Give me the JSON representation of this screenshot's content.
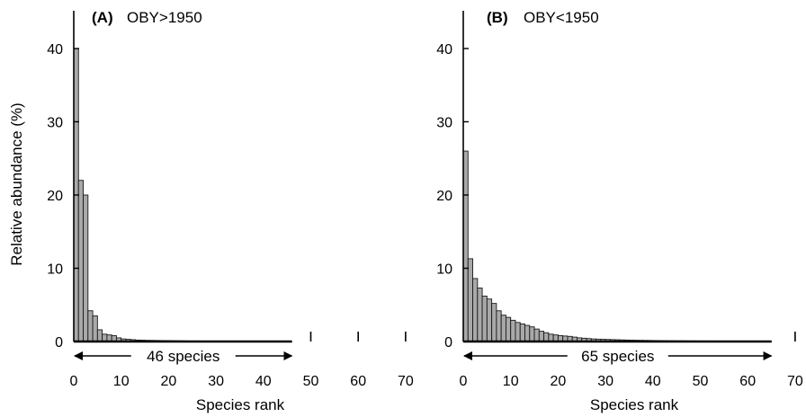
{
  "chart_data": [
    {
      "type": "bar",
      "panel_label": "(A)",
      "title": "OBY>1950",
      "xlabel": "Species rank",
      "ylabel": "Relative abundance (%)",
      "xlim": [
        0,
        70
      ],
      "ylim": [
        0,
        45
      ],
      "xticks": [
        0,
        10,
        20,
        30,
        40,
        50,
        60,
        70
      ],
      "yticks": [
        0,
        10,
        20,
        30,
        40
      ],
      "grid": false,
      "species_count": 46,
      "span_label": "46 species",
      "x": [
        1,
        2,
        3,
        4,
        5,
        6,
        7,
        8,
        9,
        10,
        11,
        12,
        13,
        14,
        15,
        16,
        17,
        18,
        19,
        20,
        21,
        22,
        23,
        24,
        25,
        26,
        27,
        28,
        29,
        30,
        31,
        32,
        33,
        34,
        35,
        36,
        37,
        38,
        39,
        40,
        41,
        42,
        43,
        44,
        45,
        46
      ],
      "values": [
        40,
        22,
        20,
        4.2,
        3.5,
        1.6,
        1.0,
        0.9,
        0.8,
        0.5,
        0.35,
        0.3,
        0.25,
        0.2,
        0.18,
        0.16,
        0.15,
        0.14,
        0.13,
        0.12,
        0.11,
        0.1,
        0.09,
        0.08,
        0.07,
        0.07,
        0.06,
        0.06,
        0.05,
        0.05,
        0.05,
        0.04,
        0.04,
        0.04,
        0.04,
        0.03,
        0.03,
        0.03,
        0.03,
        0.03,
        0.03,
        0.02,
        0.02,
        0.02,
        0.02,
        0.02
      ]
    },
    {
      "type": "bar",
      "panel_label": "(B)",
      "title": "OBY<1950",
      "xlabel": "Species rank",
      "ylabel": "",
      "xlim": [
        0,
        70
      ],
      "ylim": [
        0,
        45
      ],
      "xticks": [
        0,
        10,
        20,
        30,
        40,
        50,
        60,
        70
      ],
      "yticks": [
        0,
        10,
        20,
        30,
        40
      ],
      "grid": false,
      "species_count": 65,
      "span_label": "65 species",
      "x": [
        1,
        2,
        3,
        4,
        5,
        6,
        7,
        8,
        9,
        10,
        11,
        12,
        13,
        14,
        15,
        16,
        17,
        18,
        19,
        20,
        21,
        22,
        23,
        24,
        25,
        26,
        27,
        28,
        29,
        30,
        31,
        32,
        33,
        34,
        35,
        36,
        37,
        38,
        39,
        40,
        41,
        42,
        43,
        44,
        45,
        46,
        47,
        48,
        49,
        50,
        51,
        52,
        53,
        54,
        55,
        56,
        57,
        58,
        59,
        60,
        61,
        62,
        63,
        64,
        65
      ],
      "values": [
        26,
        11.3,
        8.6,
        7.3,
        6.2,
        5.8,
        5.2,
        4.2,
        3.6,
        3.3,
        2.9,
        2.6,
        2.4,
        2.2,
        2.0,
        1.7,
        1.4,
        1.2,
        1.0,
        0.9,
        0.8,
        0.75,
        0.7,
        0.6,
        0.5,
        0.45,
        0.4,
        0.35,
        0.32,
        0.3,
        0.28,
        0.26,
        0.24,
        0.22,
        0.2,
        0.18,
        0.17,
        0.16,
        0.15,
        0.14,
        0.13,
        0.12,
        0.11,
        0.1,
        0.1,
        0.09,
        0.09,
        0.08,
        0.08,
        0.07,
        0.07,
        0.06,
        0.06,
        0.06,
        0.05,
        0.05,
        0.05,
        0.04,
        0.04,
        0.04,
        0.04,
        0.03,
        0.03,
        0.03,
        0.03
      ]
    }
  ]
}
